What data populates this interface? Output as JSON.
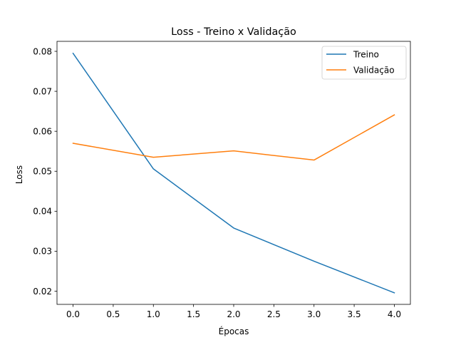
{
  "chart_data": {
    "type": "line",
    "title": "Loss - Treino x Validação",
    "xlabel": "Épocas",
    "ylabel": "Loss",
    "x": [
      0,
      1,
      2,
      3,
      4
    ],
    "xlim": [
      -0.2,
      4.2
    ],
    "ylim": [
      0.0167,
      0.0825
    ],
    "xticks": [
      0.0,
      0.5,
      1.0,
      1.5,
      2.0,
      2.5,
      3.0,
      3.5,
      4.0
    ],
    "xtick_labels": [
      "0.0",
      "0.5",
      "1.0",
      "1.5",
      "2.0",
      "2.5",
      "3.0",
      "3.5",
      "4.0"
    ],
    "yticks": [
      0.02,
      0.03,
      0.04,
      0.05,
      0.06,
      0.07,
      0.08
    ],
    "ytick_labels": [
      "0.02",
      "0.03",
      "0.04",
      "0.05",
      "0.06",
      "0.07",
      "0.08"
    ],
    "grid": false,
    "legend_position": "top-right",
    "series": [
      {
        "name": "Treino",
        "color": "#1f77b4",
        "values": [
          0.0795,
          0.0506,
          0.0358,
          0.0275,
          0.0196
        ]
      },
      {
        "name": "Validação",
        "color": "#ff7f0e",
        "values": [
          0.057,
          0.0535,
          0.0551,
          0.0528,
          0.0641
        ]
      }
    ]
  }
}
